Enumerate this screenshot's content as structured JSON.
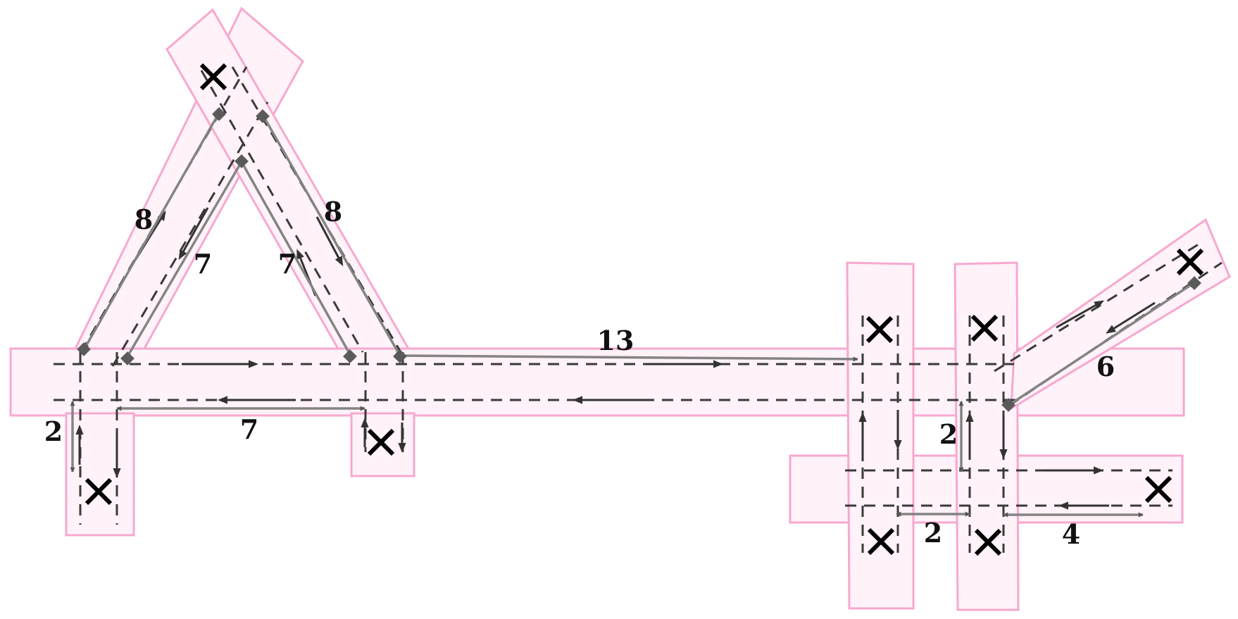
{
  "colors": {
    "road_fill": "#fff2f8",
    "road_stroke": "#f7a8d0",
    "lane_dash": "#3a3a3a",
    "dimension_line": "#848484",
    "flow_arrow": "#333333",
    "node": "#5a5a5a",
    "endpoint_marker": "#000000"
  },
  "icons": {
    "endpoint": "cross-icon",
    "junction": "diamond-node",
    "direction": "arrow-icon"
  },
  "dimensions": {
    "left_arm_outer": "8",
    "left_arm_inner": "7",
    "right_arm_inner": "7",
    "right_arm_outer": "8",
    "main_span": "13",
    "left_stub": "2",
    "left_bottom": "7",
    "right_stub": "2",
    "cross_gap": "2",
    "right_bottom": "4",
    "diagonal_arm": "6"
  }
}
